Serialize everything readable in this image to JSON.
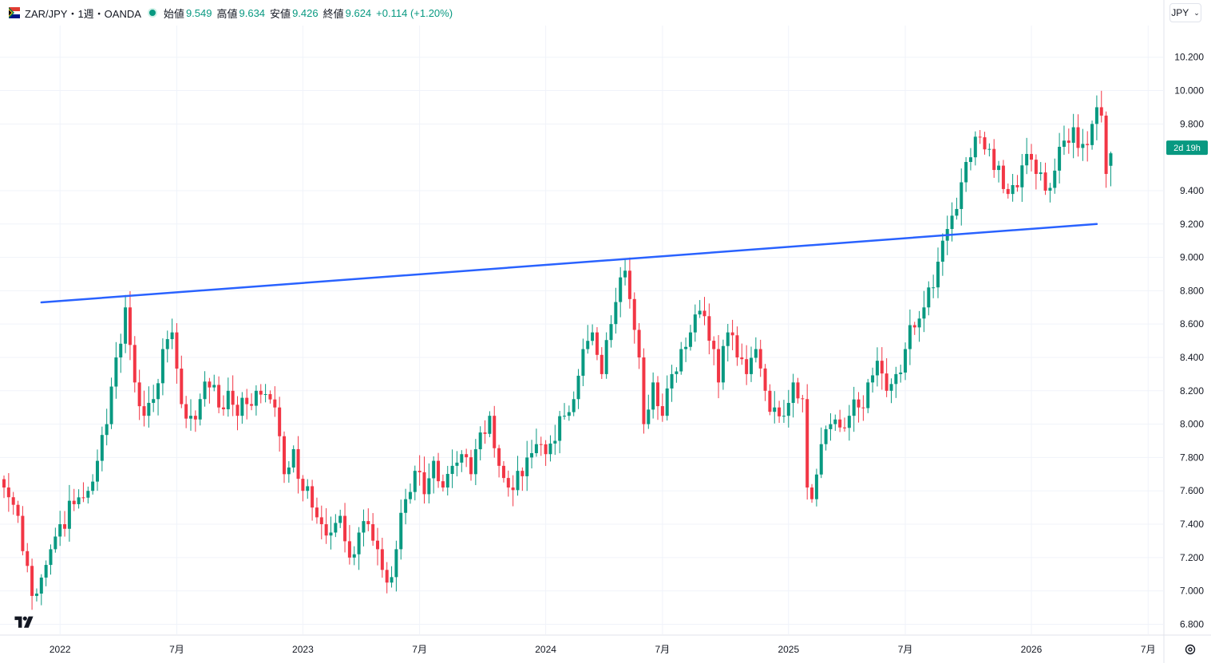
{
  "header": {
    "symbol": "ZAR/JPY・1週・OANDA",
    "open_label": "始値",
    "open_value": "9.549",
    "high_label": "高値",
    "high_value": "9.634",
    "low_label": "安値",
    "low_value": "9.426",
    "close_label": "終値",
    "close_value": "9.624",
    "change": "+0.114 (+1.20%)",
    "currency": "JPY"
  },
  "colors": {
    "up": "#089981",
    "down": "#f23645",
    "trendline": "#2962ff",
    "grid": "#f0f3fa",
    "countdown": "#089981"
  },
  "countdown": "2d 19h",
  "chart_data": {
    "type": "candlestick",
    "title": "ZAR/JPY・1週・OANDA",
    "xlabel": "",
    "ylabel": "",
    "ylim": [
      6.74,
      10.39
    ],
    "yticks": [
      "10.200",
      "10.000",
      "9.800",
      "9.400",
      "9.200",
      "9.000",
      "8.800",
      "8.600",
      "8.400",
      "8.200",
      "8.000",
      "7.800",
      "7.600",
      "7.400",
      "7.200",
      "7.000",
      "6.800"
    ],
    "xticks": [
      {
        "label": "2022",
        "week": 12
      },
      {
        "label": "7月",
        "week": 37
      },
      {
        "label": "2023",
        "week": 64
      },
      {
        "label": "7月",
        "week": 89
      },
      {
        "label": "2024",
        "week": 116
      },
      {
        "label": "7月",
        "week": 141
      },
      {
        "label": "2025",
        "week": 168
      },
      {
        "label": "7月",
        "week": 193
      },
      {
        "label": "2026",
        "week": 220
      },
      {
        "label": "7月",
        "week": 245
      }
    ],
    "grid": true,
    "anchors": [
      [
        0,
        7.62
      ],
      [
        3,
        7.45
      ],
      [
        5,
        7.15
      ],
      [
        6,
        6.97
      ],
      [
        8,
        7.08
      ],
      [
        10,
        7.25
      ],
      [
        12,
        7.4
      ],
      [
        15,
        7.52
      ],
      [
        18,
        7.6
      ],
      [
        20,
        7.78
      ],
      [
        22,
        8.0
      ],
      [
        24,
        8.4
      ],
      [
        26,
        8.7
      ],
      [
        28,
        8.25
      ],
      [
        30,
        8.05
      ],
      [
        32,
        8.15
      ],
      [
        34,
        8.45
      ],
      [
        36,
        8.55
      ],
      [
        38,
        8.12
      ],
      [
        40,
        8.05
      ],
      [
        42,
        8.15
      ],
      [
        44,
        8.22
      ],
      [
        46,
        8.1
      ],
      [
        48,
        8.2
      ],
      [
        50,
        8.05
      ],
      [
        52,
        8.12
      ],
      [
        54,
        8.2
      ],
      [
        56,
        8.18
      ],
      [
        58,
        8.1
      ],
      [
        60,
        7.7
      ],
      [
        62,
        7.85
      ],
      [
        64,
        7.6
      ],
      [
        66,
        7.5
      ],
      [
        68,
        7.4
      ],
      [
        70,
        7.35
      ],
      [
        72,
        7.45
      ],
      [
        74,
        7.2
      ],
      [
        76,
        7.35
      ],
      [
        78,
        7.4
      ],
      [
        80,
        7.25
      ],
      [
        82,
        7.05
      ],
      [
        84,
        7.25
      ],
      [
        86,
        7.55
      ],
      [
        88,
        7.72
      ],
      [
        90,
        7.58
      ],
      [
        92,
        7.78
      ],
      [
        94,
        7.62
      ],
      [
        96,
        7.75
      ],
      [
        98,
        7.82
      ],
      [
        100,
        7.7
      ],
      [
        102,
        7.95
      ],
      [
        104,
        8.05
      ],
      [
        106,
        7.75
      ],
      [
        108,
        7.62
      ],
      [
        110,
        7.72
      ],
      [
        112,
        7.8
      ],
      [
        114,
        7.88
      ],
      [
        116,
        7.82
      ],
      [
        118,
        7.9
      ],
      [
        120,
        8.05
      ],
      [
        122,
        8.15
      ],
      [
        124,
        8.45
      ],
      [
        126,
        8.55
      ],
      [
        128,
        8.3
      ],
      [
        130,
        8.6
      ],
      [
        132,
        8.88
      ],
      [
        133,
        8.92
      ],
      [
        134,
        8.75
      ],
      [
        136,
        8.4
      ],
      [
        137,
        8.0
      ],
      [
        139,
        8.25
      ],
      [
        141,
        8.05
      ],
      [
        143,
        8.3
      ],
      [
        145,
        8.45
      ],
      [
        147,
        8.55
      ],
      [
        149,
        8.68
      ],
      [
        151,
        8.5
      ],
      [
        153,
        8.25
      ],
      [
        155,
        8.55
      ],
      [
        157,
        8.4
      ],
      [
        159,
        8.3
      ],
      [
        161,
        8.45
      ],
      [
        163,
        8.2
      ],
      [
        165,
        8.1
      ],
      [
        167,
        8.05
      ],
      [
        169,
        8.25
      ],
      [
        171,
        8.15
      ],
      [
        172,
        7.62
      ],
      [
        173,
        7.55
      ],
      [
        175,
        7.88
      ],
      [
        177,
        8.0
      ],
      [
        179,
        7.98
      ],
      [
        181,
        8.05
      ],
      [
        183,
        8.1
      ],
      [
        185,
        8.25
      ],
      [
        187,
        8.38
      ],
      [
        189,
        8.2
      ],
      [
        191,
        8.3
      ],
      [
        193,
        8.45
      ],
      [
        195,
        8.58
      ],
      [
        197,
        8.7
      ],
      [
        199,
        8.82
      ],
      [
        201,
        9.1
      ],
      [
        203,
        9.25
      ],
      [
        205,
        9.45
      ],
      [
        207,
        9.6
      ],
      [
        209,
        9.72
      ],
      [
        211,
        9.65
      ],
      [
        213,
        9.55
      ],
      [
        215,
        9.38
      ],
      [
        217,
        9.42
      ],
      [
        219,
        9.62
      ],
      [
        221,
        9.5
      ],
      [
        223,
        9.4
      ],
      [
        225,
        9.52
      ],
      [
        227,
        9.7
      ],
      [
        229,
        9.78
      ],
      [
        231,
        9.68
      ],
      [
        233,
        9.8
      ],
      [
        234,
        9.9
      ],
      [
        235,
        9.85
      ],
      [
        236,
        9.5
      ],
      [
        237,
        9.624
      ]
    ],
    "trendline": [
      [
        8,
        8.73
      ],
      [
        234,
        9.2
      ]
    ],
    "last_close": 9.624
  }
}
